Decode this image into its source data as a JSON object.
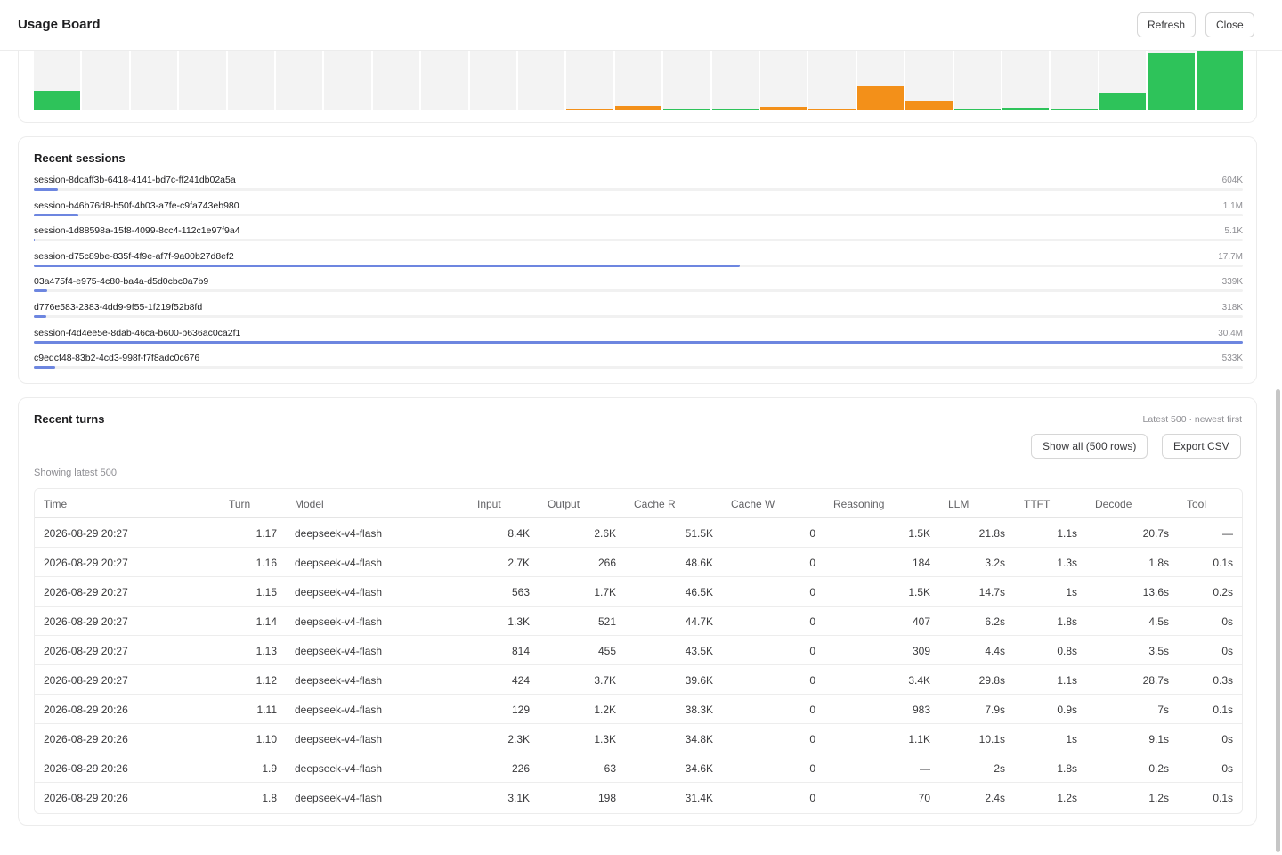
{
  "header": {
    "title": "Usage Board",
    "refresh_label": "Refresh",
    "close_label": "Close"
  },
  "colors": {
    "green": "#2ec35a",
    "orange": "#f39019",
    "bar_blue": "#6d86e0",
    "cell_bg": "#f3f3f3"
  },
  "chart_data": {
    "type": "bar",
    "values": [
      0.33,
      0,
      0,
      0,
      0,
      0,
      0,
      0,
      0,
      0,
      0,
      0.03,
      0.07,
      0.01,
      0.01,
      0.06,
      0.01,
      0.4,
      0.16,
      0.01,
      0.04,
      0.01,
      0.3,
      0.95,
      1.0
    ],
    "colors": [
      "green",
      "green",
      "green",
      "green",
      "green",
      "green",
      "green",
      "green",
      "green",
      "green",
      "green",
      "orange",
      "orange",
      "green",
      "green",
      "orange",
      "orange",
      "orange",
      "orange",
      "green",
      "green",
      "green",
      "green",
      "green",
      "green"
    ],
    "title": "",
    "xlabel": "",
    "ylabel": ""
  },
  "sessions": {
    "title": "Recent sessions",
    "items": [
      {
        "name": "session-8dcaff3b-6418-4141-bd7c-ff241db02a5a",
        "value": "604K",
        "share": 0.02
      },
      {
        "name": "session-b46b76d8-b50f-4b03-a7fe-c9fa743eb980",
        "value": "1.1M",
        "share": 0.037
      },
      {
        "name": "session-1d88598a-15f8-4099-8cc4-112c1e97f9a4",
        "value": "5.1K",
        "share": 0.001
      },
      {
        "name": "session-d75c89be-835f-4f9e-af7f-9a00b27d8ef2",
        "value": "17.7M",
        "share": 0.584
      },
      {
        "name": "03a475f4-e975-4c80-ba4a-d5d0cbc0a7b9",
        "value": "339K",
        "share": 0.011
      },
      {
        "name": "d776e583-2383-4dd9-9f55-1f219f52b8fd",
        "value": "318K",
        "share": 0.01
      },
      {
        "name": "session-f4d4ee5e-8dab-46ca-b600-b636ac0ca2f1",
        "value": "30.4M",
        "share": 1.0
      },
      {
        "name": "c9edcf48-83b2-4cd3-998f-f7f8adc0c676",
        "value": "533K",
        "share": 0.018
      }
    ]
  },
  "turns": {
    "title": "Recent turns",
    "meta": "Latest 500 · newest first",
    "show_all_label": "Show all (500 rows)",
    "export_label": "Export CSV",
    "showing_label": "Showing latest 500",
    "columns": [
      "Time",
      "Turn",
      "Model",
      "Input",
      "Output",
      "Cache R",
      "Cache W",
      "Reasoning",
      "LLM",
      "TTFT",
      "Decode",
      "Tool"
    ],
    "rows": [
      [
        "2026-08-29 20:27",
        "1.17",
        "deepseek-v4-flash",
        "8.4K",
        "2.6K",
        "51.5K",
        "0",
        "1.5K",
        "21.8s",
        "1.1s",
        "20.7s",
        "—"
      ],
      [
        "2026-08-29 20:27",
        "1.16",
        "deepseek-v4-flash",
        "2.7K",
        "266",
        "48.6K",
        "0",
        "184",
        "3.2s",
        "1.3s",
        "1.8s",
        "0.1s"
      ],
      [
        "2026-08-29 20:27",
        "1.15",
        "deepseek-v4-flash",
        "563",
        "1.7K",
        "46.5K",
        "0",
        "1.5K",
        "14.7s",
        "1s",
        "13.6s",
        "0.2s"
      ],
      [
        "2026-08-29 20:27",
        "1.14",
        "deepseek-v4-flash",
        "1.3K",
        "521",
        "44.7K",
        "0",
        "407",
        "6.2s",
        "1.8s",
        "4.5s",
        "0s"
      ],
      [
        "2026-08-29 20:27",
        "1.13",
        "deepseek-v4-flash",
        "814",
        "455",
        "43.5K",
        "0",
        "309",
        "4.4s",
        "0.8s",
        "3.5s",
        "0s"
      ],
      [
        "2026-08-29 20:27",
        "1.12",
        "deepseek-v4-flash",
        "424",
        "3.7K",
        "39.6K",
        "0",
        "3.4K",
        "29.8s",
        "1.1s",
        "28.7s",
        "0.3s"
      ],
      [
        "2026-08-29 20:26",
        "1.11",
        "deepseek-v4-flash",
        "129",
        "1.2K",
        "38.3K",
        "0",
        "983",
        "7.9s",
        "0.9s",
        "7s",
        "0.1s"
      ],
      [
        "2026-08-29 20:26",
        "1.10",
        "deepseek-v4-flash",
        "2.3K",
        "1.3K",
        "34.8K",
        "0",
        "1.1K",
        "10.1s",
        "1s",
        "9.1s",
        "0s"
      ],
      [
        "2026-08-29 20:26",
        "1.9",
        "deepseek-v4-flash",
        "226",
        "63",
        "34.6K",
        "0",
        "—",
        "2s",
        "1.8s",
        "0.2s",
        "0s"
      ],
      [
        "2026-08-29 20:26",
        "1.8",
        "deepseek-v4-flash",
        "3.1K",
        "198",
        "31.4K",
        "0",
        "70",
        "2.4s",
        "1.2s",
        "1.2s",
        "0.1s"
      ]
    ]
  }
}
